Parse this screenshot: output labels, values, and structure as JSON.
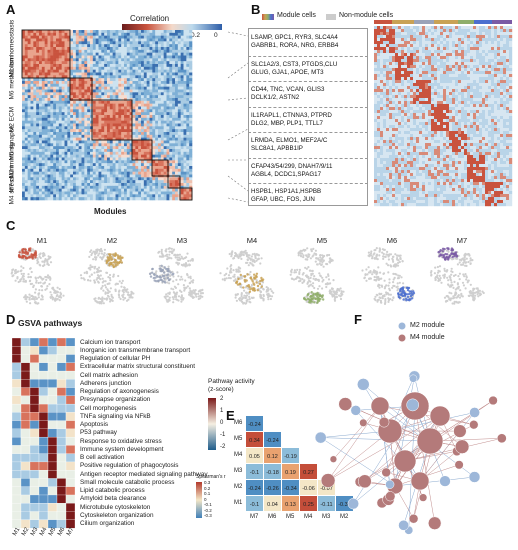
{
  "panels": {
    "A": "A",
    "B": "B",
    "C": "C",
    "D": "D",
    "E": "E",
    "F": "F"
  },
  "panel_a": {
    "colorbar_title": "Correlation",
    "colorbar_ticks": [
      "0.8",
      "0.6",
      "0.4",
      "0.2",
      "0"
    ],
    "modules": [
      {
        "id": "M1",
        "name": "ion\nhomeostasis",
        "label": "M1 ion homeostasis"
      },
      {
        "id": "M6",
        "name": "metabolism",
        "label": "M6 metabolism"
      },
      {
        "id": "M2",
        "name": "ECM",
        "label": "M2 ECM"
      },
      {
        "id": "M5",
        "name": "synapse",
        "label": "M5 synapse"
      },
      {
        "id": "M3",
        "name": "immunity",
        "label": "M3 immunity"
      },
      {
        "id": "M7",
        "name": "cilium",
        "label": "M7 cilium"
      },
      {
        "id": "M4",
        "name": "stress",
        "label": "M4 stress"
      }
    ],
    "xlabel": "Modules"
  },
  "panel_b": {
    "legend_module": "Module cells",
    "legend_nonmodule": "Non-module cells",
    "gene_groups": [
      [
        "LSAMP, GPC1, RYR3, SLC4A4",
        "GABRB1, RORA, NRG, ERBB4"
      ],
      [
        "SLC1A2/3, CST3, PTGDS,CLU",
        "GLUG, GJA1, APOE, MT3"
      ],
      [
        "CD44, TNC, VCAN, GLIS3",
        "DCLK1/2, ASTN2"
      ],
      [
        "IL1RAPL1, CTNNA3, PTPRD",
        "DLG2, MBP, PLP1, TTLL7"
      ],
      [
        "LRMDA, ELMO1, MEF2A/C",
        "SLC8A1, APBB1IP"
      ],
      [
        "CFAP43/54/299, DNAH7/9/11",
        "AGBL4, DCDC1,SPAG17"
      ],
      [
        "HSPB1, HSP1A1,HSPBB",
        "GFAP, UBC, FOS, JUN"
      ]
    ]
  },
  "panel_c": {
    "titles": [
      "M1",
      "M2",
      "M3",
      "M4",
      "M5",
      "M6",
      "M7"
    ],
    "colors": [
      "#c8543f",
      "#c9a255",
      "#9aa3b9",
      "#c9a255",
      "#8fae6a",
      "#4b6fcf",
      "#7a5aa5"
    ]
  },
  "panel_d": {
    "title": "GSVA pathways",
    "pathways": [
      "Calcium ion transport",
      "Inorganic ion transmembrane transport",
      "Regulation of cellular PH",
      "Extracellular matrix structural constituent",
      "Cell matrix adhesion",
      "Adherens junction",
      "Regulation of axonogenesis",
      "Presynapse organization",
      "Cell morphogenesis",
      "TNFa signaling via NFkB",
      "Apoptosis",
      "P53 pathway",
      "Response to oxidative stress",
      "Immune system development",
      "B cell activation",
      "Positive regulation of phagocytosis",
      "Antigen receptor mediated signaling pathway",
      "Small molecule catabolic process",
      "Lipid catabolic process",
      "Amyloid beta clearance",
      "Microtubule cytoskeleton",
      "Cytoskeleton organization",
      "Cilium organization"
    ],
    "columns": [
      "M1",
      "M2",
      "M3",
      "M4",
      "M5",
      "M6",
      "M7"
    ],
    "colorbar_title": "Pathway activity\n(z-score)",
    "colorbar_ticks": [
      "2",
      "1",
      "0",
      "-1",
      "-2"
    ]
  },
  "panel_e": {
    "rows": [
      "M6",
      "M5",
      "M4",
      "M3",
      "M2",
      "M1"
    ],
    "cols": [
      "M7",
      "M6",
      "M5",
      "M4",
      "M3",
      "M2"
    ],
    "values": [
      [
        "-0.24",
        "",
        "",
        "",
        "",
        ""
      ],
      [
        "0.34",
        "-0.24",
        "",
        "",
        "",
        ""
      ],
      [
        "0.05",
        "0.12",
        "-0.19",
        "",
        "",
        ""
      ],
      [
        "-0.1",
        "-0.18",
        "0.19",
        "0.27",
        "",
        ""
      ],
      [
        "-0.24",
        "-0.26",
        "-0.34",
        "-0.06",
        "-0.07",
        ""
      ],
      [
        "-0.1",
        "0.04",
        "0.13",
        "0.25",
        "-0.11",
        "-0.31"
      ]
    ],
    "legend_title": "Spearman's r",
    "legend_ticks": [
      "0.3",
      "0.2",
      "0.1",
      "0",
      "-0.1",
      "-0.2",
      "-0.3"
    ]
  },
  "panel_f": {
    "legend": [
      {
        "label": "M2 module",
        "color": "#9db7d9"
      },
      {
        "label": "M4 module",
        "color": "#b47a7a"
      }
    ]
  }
}
